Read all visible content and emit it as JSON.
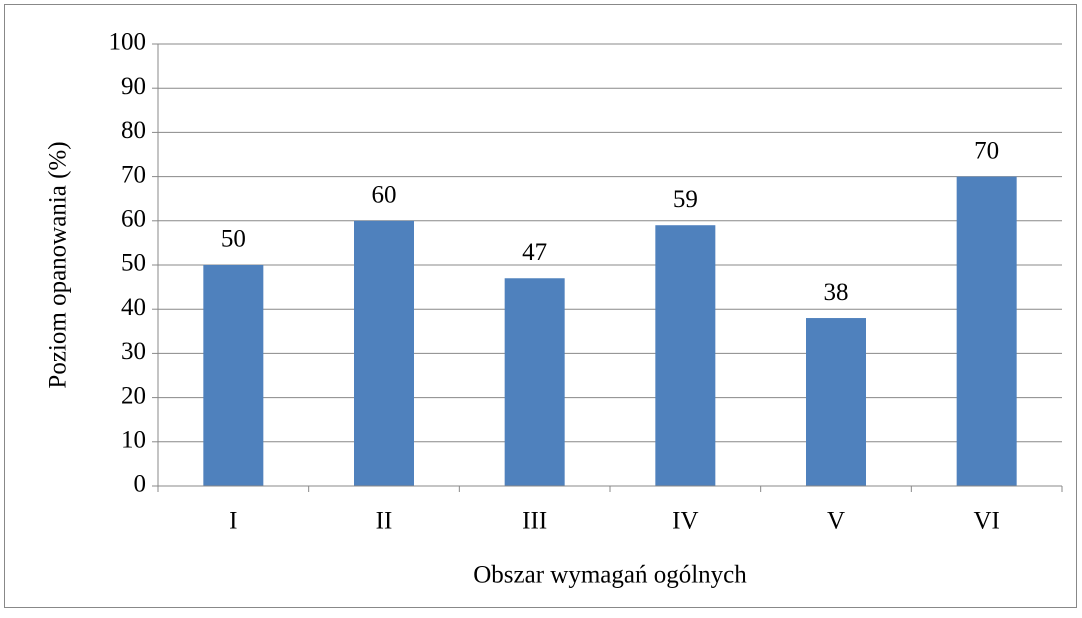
{
  "chart_data": {
    "type": "bar",
    "x_label": "Obszar wymagań ogólnych",
    "y_label": "Poziom opanowania (%)",
    "categories": [
      "I",
      "II",
      "III",
      "IV",
      "V",
      "VI"
    ],
    "values": [
      50,
      60,
      47,
      59,
      38,
      70
    ],
    "color": "#4f81bd",
    "ylim": [
      0,
      100
    ],
    "yticks": [
      0,
      10,
      20,
      30,
      40,
      50,
      60,
      70,
      80,
      90,
      100
    ],
    "grid": true
  }
}
